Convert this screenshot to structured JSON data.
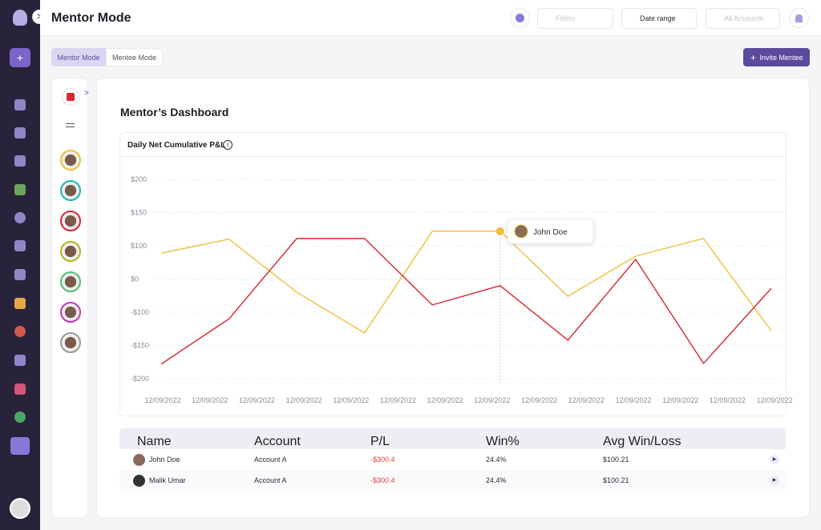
{
  "header": {
    "title": "Mentor Mode",
    "filters": "Filters",
    "date_range": "Date range",
    "accounts": "All Accounts"
  },
  "tabs": [
    "Mentor Mode",
    "Mentee Mode"
  ],
  "invite_button": "Invite Mentee",
  "dashboard_title": "Mentor’s Dashboard",
  "chart_data": {
    "type": "line",
    "title": "Daily Net Cumulative P&L",
    "x_tick_labels": [
      "12/09/2022",
      "12/09/2022",
      "12/09/2022",
      "12/09/2022",
      "12/09/2022",
      "12/09/2022",
      "12/09/2022",
      "12/09/2022",
      "12/09/2022",
      "12/09/2022",
      "12/09/2022",
      "12/09/2022",
      "12/09/2022",
      "12/09/2022"
    ],
    "yticks": [
      {
        "value": 200,
        "label": "$200"
      },
      {
        "value": 150,
        "label": "$150"
      },
      {
        "value": 100,
        "label": "$100"
      },
      {
        "value": 0,
        "label": "$0"
      },
      {
        "value": -100,
        "label": "-$100"
      },
      {
        "value": -150,
        "label": "-$150"
      },
      {
        "value": -200,
        "label": "-$200"
      }
    ],
    "grid": true,
    "series": [
      {
        "color": "#f0be3c",
        "values": [
          78,
          110,
          -40,
          -131,
          122,
          122,
          -52,
          69,
          111,
          -128
        ]
      },
      {
        "color": "#d9252e",
        "values": [
          -178,
          -110,
          111,
          111,
          -78,
          -20,
          -142,
          59,
          -177,
          -28
        ]
      }
    ],
    "tooltip": {
      "label": "John Doe"
    }
  },
  "table": {
    "columns": [
      "Name",
      "Account",
      "P/L",
      "Win%",
      "Avg Win/Loss"
    ],
    "rows": [
      [
        "John Doe",
        "Account A",
        "-$300.4",
        "24.4%",
        "$100.21"
      ],
      [
        "Malik Umar",
        "Account A",
        "-$300.4",
        "24.4%",
        "$100.21"
      ]
    ]
  }
}
